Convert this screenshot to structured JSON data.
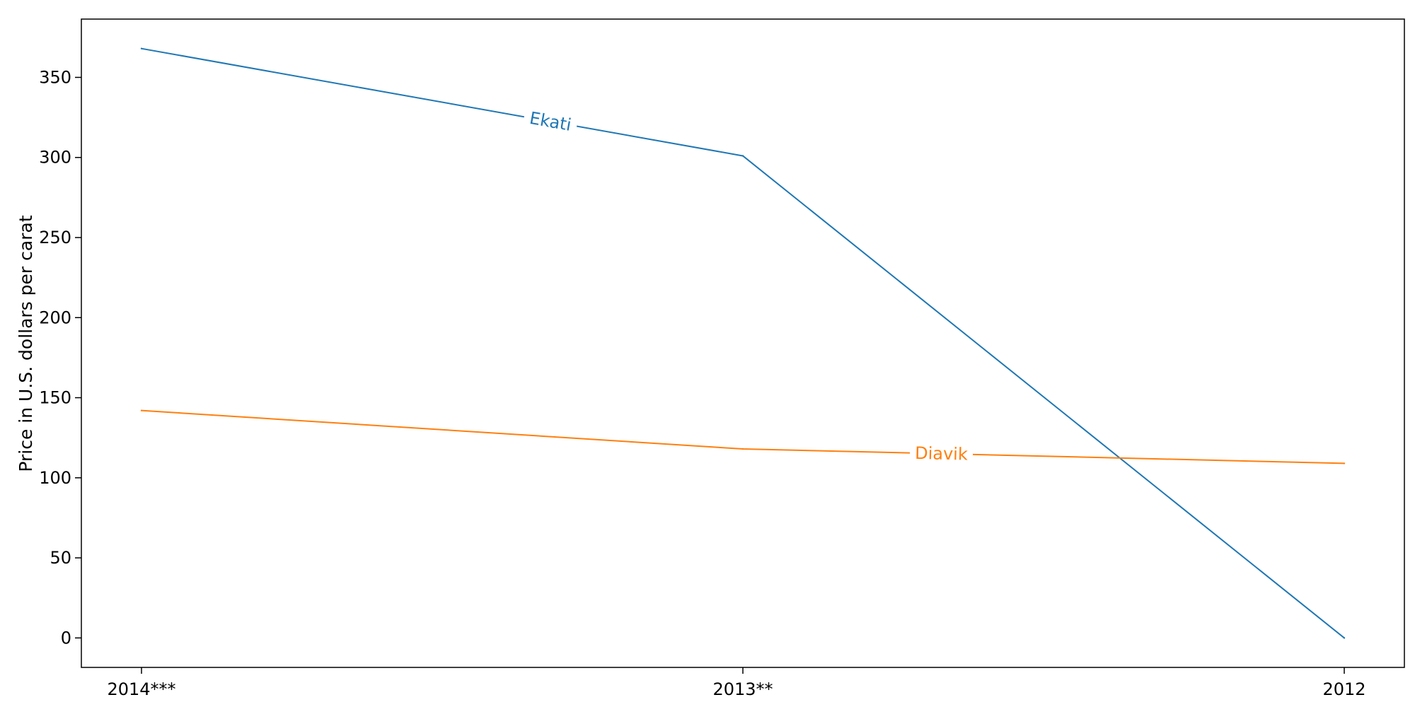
{
  "chart_data": {
    "type": "line",
    "title": "",
    "xlabel": "",
    "ylabel": "Price in U.S. dollars per carat",
    "categories": [
      "2014***",
      "2013**",
      "2012"
    ],
    "series": [
      {
        "name": "Ekati",
        "color": "#1f77b4",
        "values": [
          368,
          301,
          0
        ]
      },
      {
        "name": "Diavik",
        "color": "#ff7f0e",
        "values": [
          142,
          118,
          109
        ]
      }
    ],
    "ylim": [
      -18.4,
      386.4
    ],
    "yticks": [
      0,
      50,
      100,
      150,
      200,
      250,
      300,
      350
    ],
    "grid": false,
    "legend": "inline labels on lines"
  }
}
